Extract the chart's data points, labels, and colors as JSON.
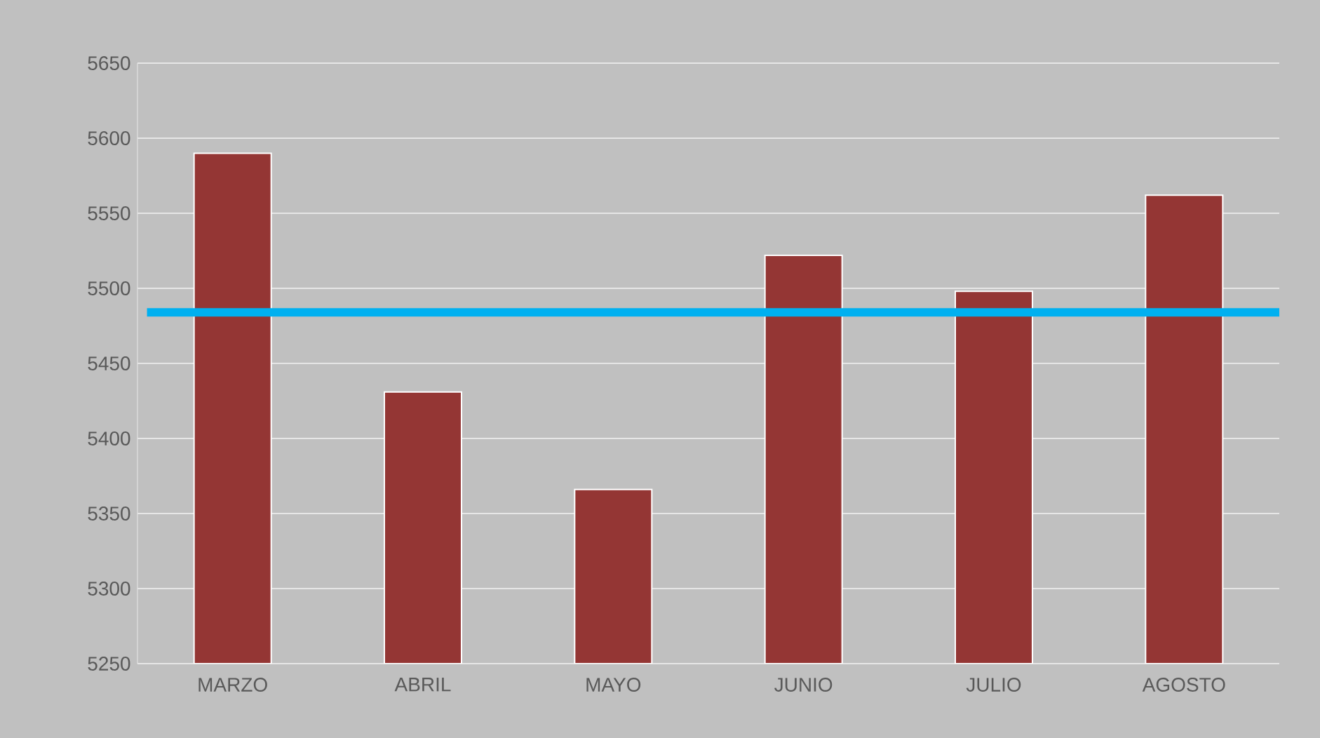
{
  "chart_data": {
    "type": "bar",
    "categories": [
      "MARZO",
      "ABRIL",
      "MAYO",
      "JUNIO",
      "JULIO",
      "AGOSTO"
    ],
    "values": [
      5590,
      5431,
      5366,
      5522,
      5498,
      5562
    ],
    "color": "#943634",
    "ylim": [
      5250,
      5650
    ],
    "yticks": [
      5250,
      5300,
      5350,
      5400,
      5450,
      5500,
      5550,
      5600,
      5650
    ],
    "grid": "y",
    "ref_lines": [
      {
        "axis": "y",
        "value": 5484,
        "color": "#00b0f0"
      }
    ]
  }
}
